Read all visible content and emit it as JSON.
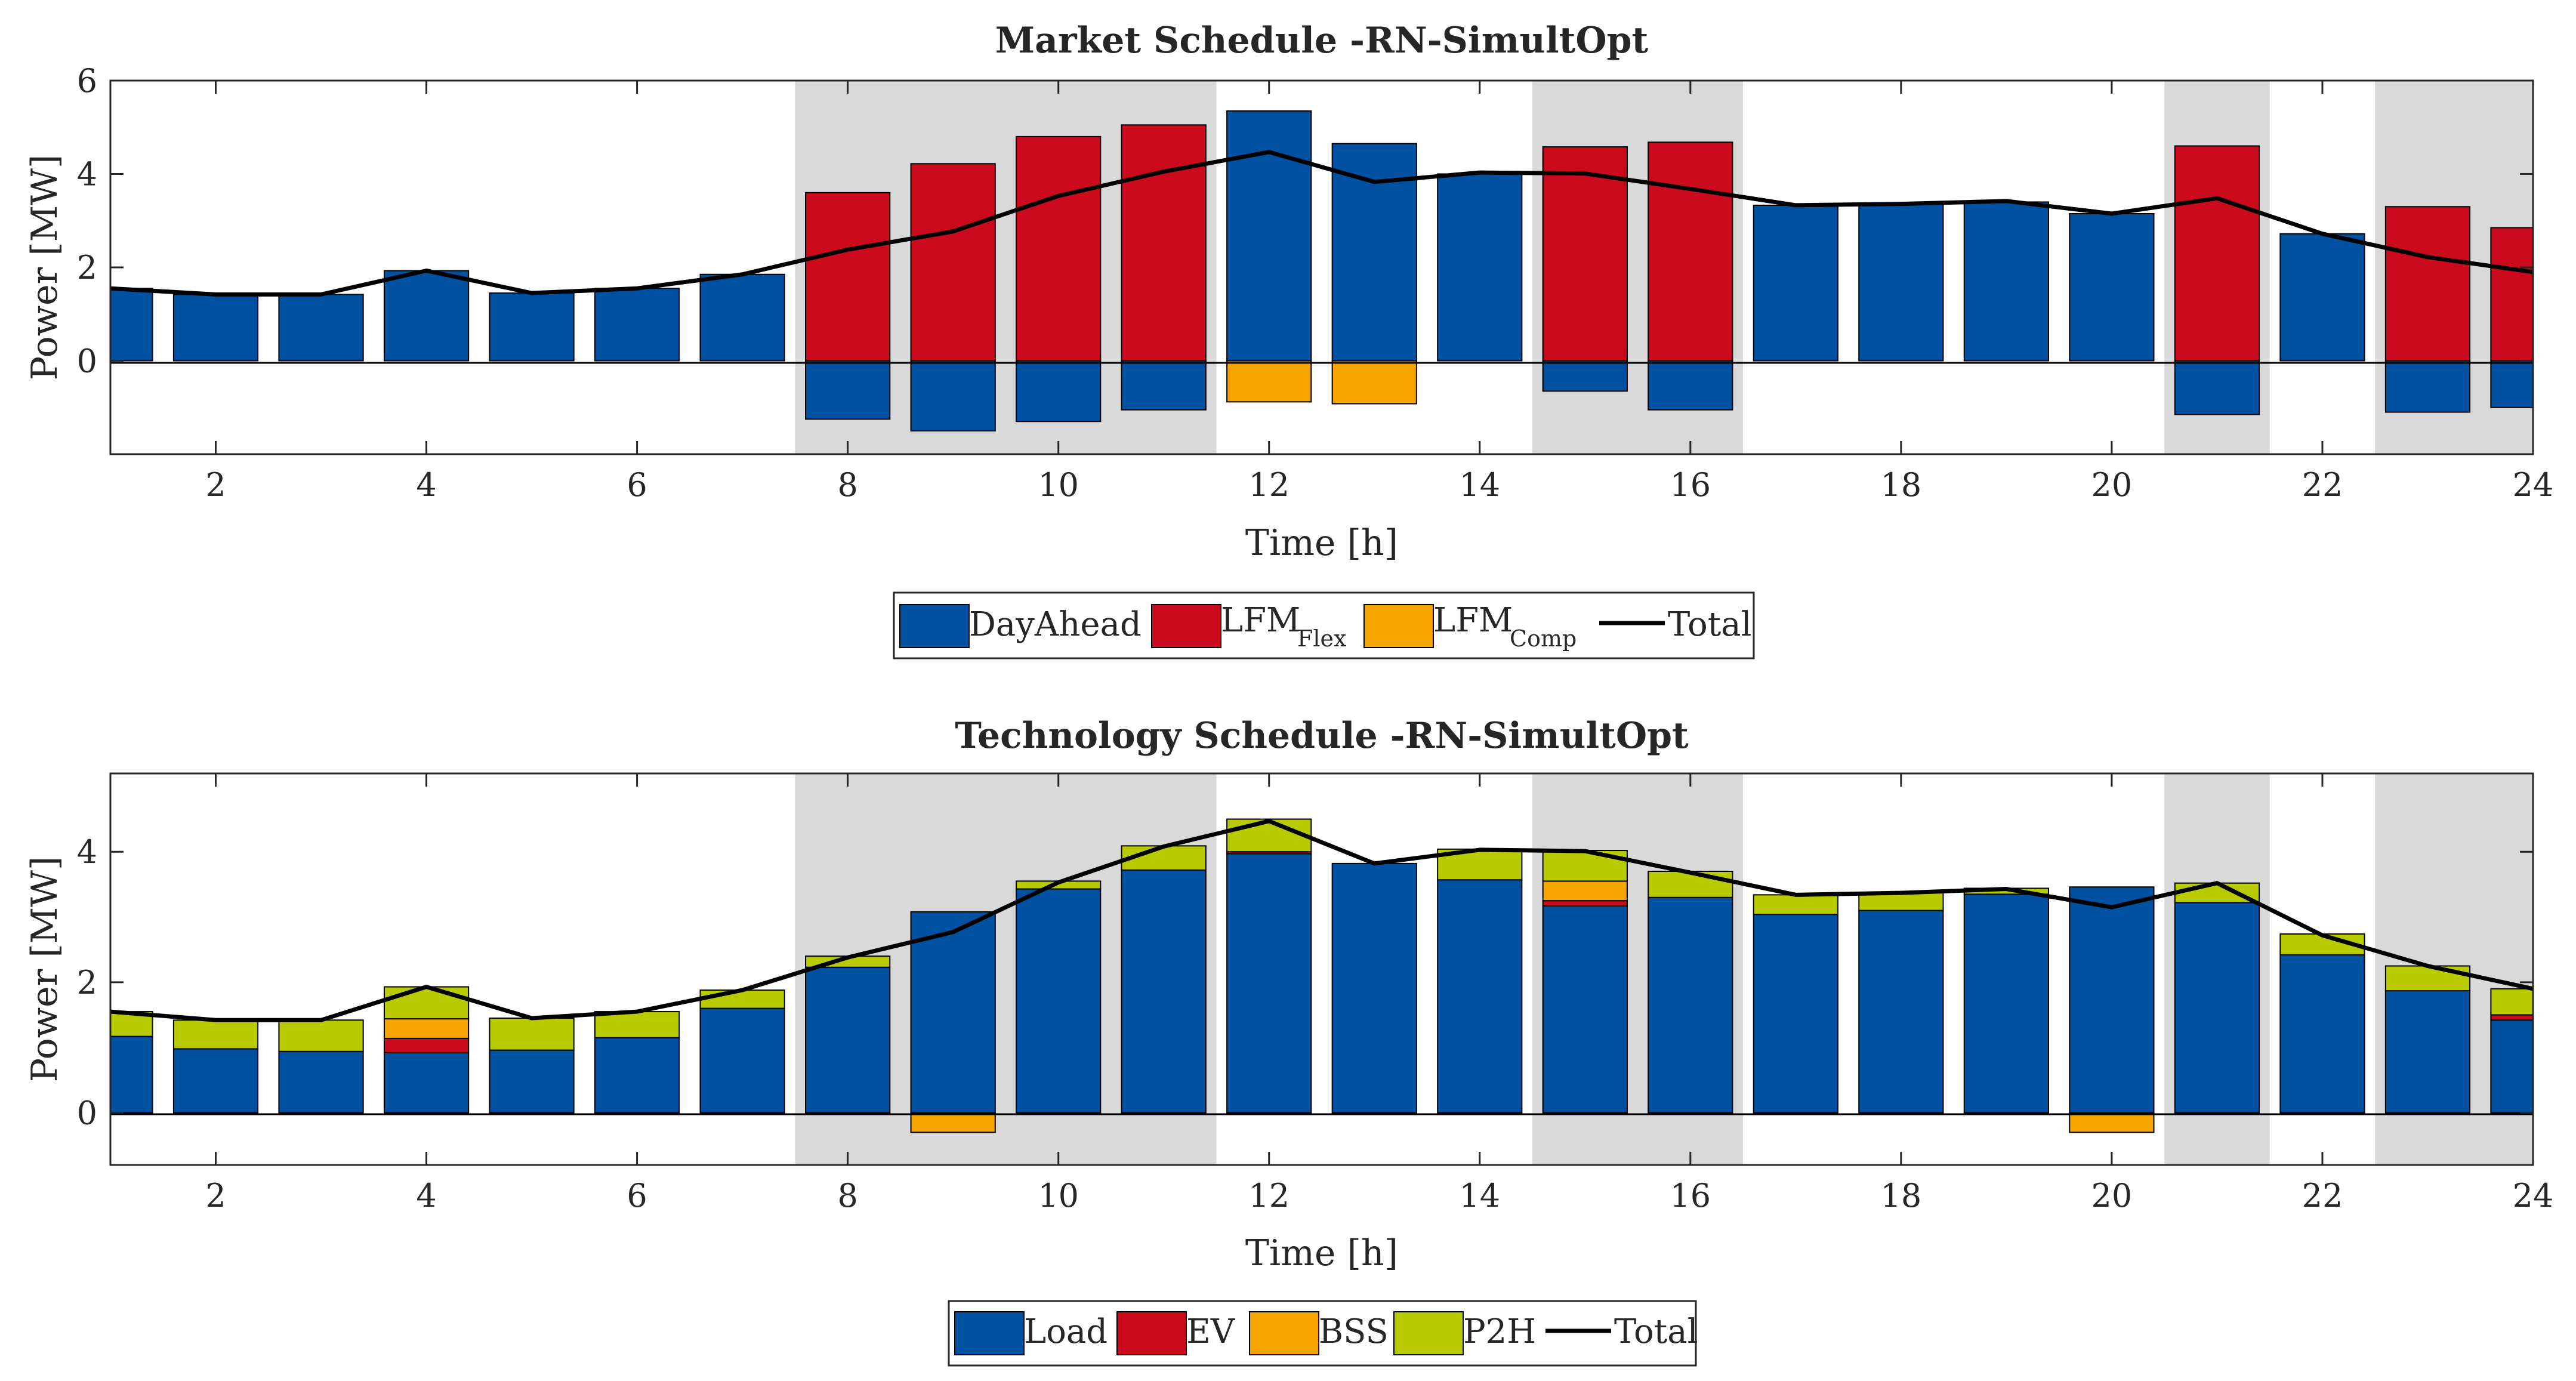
{
  "chart_data": [
    {
      "type": "bar",
      "stacked": true,
      "title": "Market Schedule -RN-SimultOpt",
      "xlabel": "Time [h]",
      "ylabel": "Power [MW]",
      "xlim": [
        1,
        24
      ],
      "ylim": [
        -2,
        6
      ],
      "xticks": [
        "2",
        "4",
        "6",
        "8",
        "10",
        "12",
        "14",
        "16",
        "18",
        "20",
        "22",
        "24"
      ],
      "yticks": [
        "0",
        "2",
        "4",
        "6"
      ],
      "x": [
        1,
        2,
        3,
        4,
        5,
        6,
        7,
        8,
        9,
        10,
        11,
        12,
        13,
        14,
        15,
        16,
        17,
        18,
        19,
        20,
        21,
        22,
        23,
        24
      ],
      "shaded_periods": [
        [
          8,
          11
        ],
        [
          15,
          16
        ],
        [
          21,
          21
        ],
        [
          23,
          24
        ]
      ],
      "series": [
        {
          "name": "DayAhead",
          "color": "#0051a2",
          "values": [
            1.55,
            1.42,
            1.42,
            1.93,
            1.45,
            1.55,
            1.85,
            -1.25,
            -1.5,
            -1.3,
            -1.05,
            5.35,
            4.65,
            4.0,
            -0.65,
            -1.05,
            3.33,
            3.36,
            3.4,
            3.15,
            -1.15,
            2.72,
            -1.1,
            -1.0
          ]
        },
        {
          "name": "LFM",
          "subscript": "Flex",
          "color": "#cc0a1e",
          "values": [
            0,
            0,
            0,
            0,
            0,
            0,
            0,
            3.6,
            4.22,
            4.8,
            5.05,
            0,
            0,
            0,
            4.58,
            4.68,
            0,
            0,
            0,
            0,
            4.6,
            0,
            3.3,
            2.85
          ]
        },
        {
          "name": "LFM",
          "subscript": "Comp",
          "color": "#f6a500",
          "values": [
            0,
            0,
            0,
            0,
            0,
            0,
            0,
            0,
            0,
            0,
            0,
            -0.88,
            -0.92,
            0,
            0,
            0,
            0,
            0,
            0,
            0,
            0,
            0,
            0,
            0
          ]
        },
        {
          "name": "Total",
          "type": "line",
          "color": "#000000",
          "values": [
            1.55,
            1.42,
            1.42,
            1.93,
            1.45,
            1.55,
            1.85,
            2.38,
            2.77,
            3.53,
            4.05,
            4.47,
            3.83,
            4.03,
            4.01,
            3.68,
            3.33,
            3.36,
            3.42,
            3.15,
            3.48,
            2.72,
            2.22,
            1.9
          ]
        }
      ],
      "legend_position": "bottom-center"
    },
    {
      "type": "bar",
      "stacked": true,
      "title": "Technology Schedule -RN-SimultOpt",
      "xlabel": "Time [h]",
      "ylabel": "Power [MW]",
      "xlim": [
        1,
        24
      ],
      "ylim": [
        -0.8,
        5.2
      ],
      "xticks": [
        "2",
        "4",
        "6",
        "8",
        "10",
        "12",
        "14",
        "16",
        "18",
        "20",
        "22",
        "24"
      ],
      "yticks": [
        "0",
        "2",
        "4"
      ],
      "x": [
        1,
        2,
        3,
        4,
        5,
        6,
        7,
        8,
        9,
        10,
        11,
        12,
        13,
        14,
        15,
        16,
        17,
        18,
        19,
        20,
        21,
        22,
        23,
        24
      ],
      "shaded_periods": [
        [
          8,
          11
        ],
        [
          15,
          16
        ],
        [
          21,
          21
        ],
        [
          23,
          24
        ]
      ],
      "series": [
        {
          "name": "Load",
          "color": "#0051a2",
          "values": [
            1.17,
            0.98,
            0.94,
            0.92,
            0.96,
            1.15,
            1.6,
            2.23,
            3.08,
            3.43,
            3.72,
            3.97,
            3.82,
            3.57,
            3.17,
            3.3,
            3.04,
            3.1,
            3.35,
            3.46,
            3.22,
            2.42,
            1.87,
            1.42
          ]
        },
        {
          "name": "EV",
          "color": "#cc0a1e",
          "values": [
            0,
            0,
            0,
            0.22,
            0,
            0,
            0,
            0,
            0,
            0,
            0,
            0.03,
            0,
            0,
            0.08,
            0,
            0,
            0,
            0,
            0,
            0,
            0,
            0,
            0.08
          ]
        },
        {
          "name": "BSS",
          "color": "#f6a500",
          "values": [
            0,
            0,
            0,
            0.3,
            0,
            0,
            0,
            0,
            -0.3,
            0,
            0,
            0,
            0,
            0,
            0.3,
            0,
            0,
            0,
            0,
            -0.3,
            0,
            0,
            0,
            0
          ]
        },
        {
          "name": "P2H",
          "color": "#b7cb00",
          "values": [
            0.38,
            0.44,
            0.48,
            0.49,
            0.49,
            0.4,
            0.28,
            0.17,
            0,
            0.12,
            0.37,
            0.5,
            0,
            0.47,
            0.47,
            0.4,
            0.3,
            0.27,
            0.09,
            0,
            0.3,
            0.32,
            0.38,
            0.4
          ]
        },
        {
          "name": "Total",
          "type": "line",
          "color": "#000000",
          "values": [
            1.55,
            1.42,
            1.42,
            1.93,
            1.45,
            1.55,
            1.88,
            2.38,
            2.77,
            3.53,
            4.08,
            4.47,
            3.82,
            4.03,
            4.01,
            3.68,
            3.34,
            3.37,
            3.43,
            3.15,
            3.52,
            2.72,
            2.25,
            1.9
          ]
        }
      ],
      "legend_position": "bottom-center"
    }
  ]
}
